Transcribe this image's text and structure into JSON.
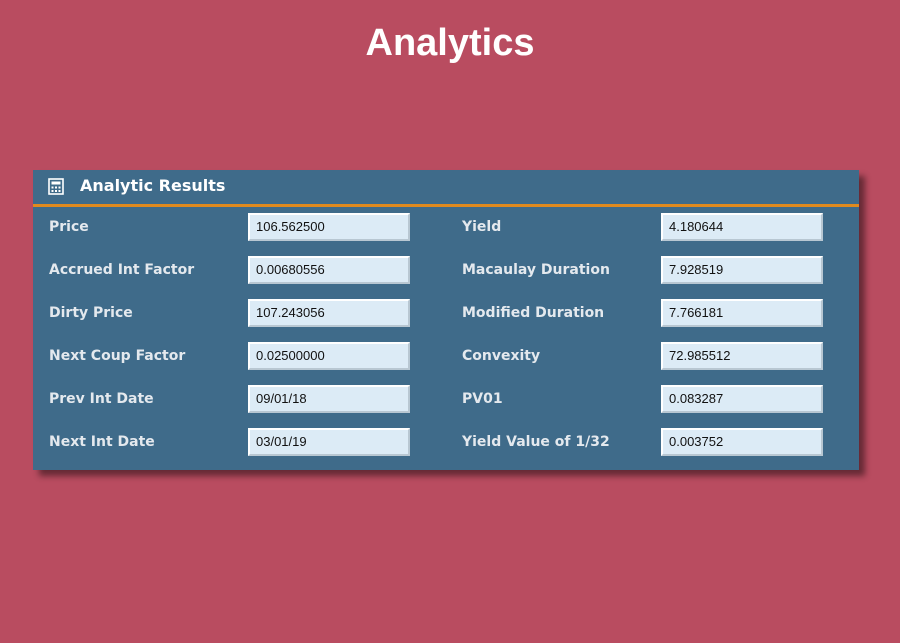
{
  "header": {
    "title": "Analytics"
  },
  "panel": {
    "title": "Analytic Results",
    "rows": [
      [
        {
          "label": "Price",
          "value": "106.562500"
        },
        {
          "label": "Yield",
          "value": "4.180644"
        }
      ],
      [
        {
          "label": "Accrued Int Factor",
          "value": "0.00680556"
        },
        {
          "label": "Macaulay Duration",
          "value": "7.928519"
        }
      ],
      [
        {
          "label": "Dirty Price",
          "value": "107.243056"
        },
        {
          "label": "Modified Duration",
          "value": "7.766181"
        }
      ],
      [
        {
          "label": "Next Coup Factor",
          "value": "0.02500000"
        },
        {
          "label": "Convexity",
          "value": "72.985512"
        }
      ],
      [
        {
          "label": "Prev Int Date",
          "value": "09/01/18"
        },
        {
          "label": "PV01",
          "value": "0.083287"
        }
      ],
      [
        {
          "label": "Next Int Date",
          "value": "03/01/19"
        },
        {
          "label": "Yield Value of 1/32",
          "value": "0.003752"
        }
      ]
    ]
  }
}
